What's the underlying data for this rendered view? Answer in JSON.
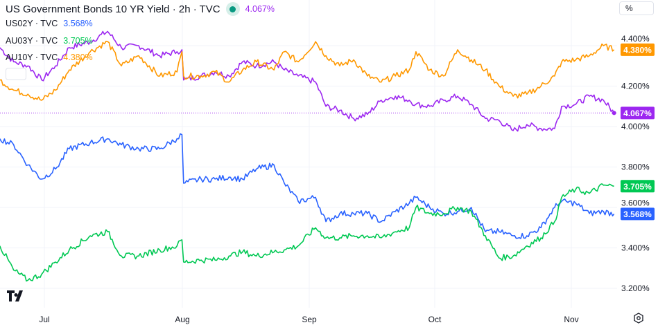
{
  "header": {
    "title": "US Government Bonds 10 YR Yield · 2h · TVC",
    "value": "4.067%"
  },
  "legend": [
    {
      "label": "US02Y · TVC",
      "value": "3.568%",
      "color": "#2962ff"
    },
    {
      "label": "AU03Y · TVC",
      "value": "3.705%",
      "color": "#00c853"
    },
    {
      "label": "AU10Y · TVC",
      "value": "4.380%",
      "color": "#ff9800"
    }
  ],
  "scale_button": "%",
  "chart_data": {
    "type": "line",
    "title": "US Government Bonds 10 YR Yield · 2h · TVC",
    "x_unit": "days since Jul 1",
    "x_ticks": [
      {
        "label": "Jul",
        "day": 0
      },
      {
        "label": "Aug",
        "day": 31
      },
      {
        "label": "Sep",
        "day": 62
      },
      {
        "label": "Oct",
        "day": 92
      },
      {
        "label": "Nov",
        "day": 123
      }
    ],
    "y_ticks": [
      "4.400%",
      "4.200%",
      "4.000%",
      "3.800%",
      "3.600%",
      "3.400%",
      "3.200%"
    ],
    "y_tick_values": [
      4.4,
      4.2,
      4.0,
      3.8,
      3.6,
      3.4,
      3.2
    ],
    "ylim": [
      3.13,
      4.62
    ],
    "x": [
      -10,
      -6.9,
      -3.7,
      -0.6,
      2.5,
      5.6,
      10.3,
      14.2,
      17.3,
      21.2,
      25.9,
      29.8,
      30.9,
      31.3,
      35.6,
      39,
      42.4,
      45.7,
      49.1,
      53.4,
      55.9,
      59.3,
      63.5,
      66,
      69.3,
      72.6,
      75.9,
      79.2,
      82.6,
      85.9,
      87.5,
      90.8,
      94,
      97.2,
      100.3,
      103.5,
      106.6,
      109.8,
      112.9,
      116.1,
      119.2,
      120.8,
      124,
      127.1,
      130.3,
      132.7
    ],
    "series": [
      {
        "name": "US10Y",
        "color": "#9c27f0",
        "last": "4.067%",
        "values": [
          4.39,
          4.32,
          4.3,
          4.23,
          4.3,
          4.39,
          4.42,
          4.47,
          4.39,
          4.4,
          4.35,
          4.37,
          4.38,
          4.23,
          4.25,
          4.27,
          4.25,
          4.32,
          4.3,
          4.32,
          4.28,
          4.25,
          4.22,
          4.1,
          4.08,
          4.04,
          4.06,
          4.13,
          4.15,
          4.13,
          4.11,
          4.1,
          4.13,
          4.15,
          4.11,
          4.04,
          4.03,
          3.98,
          4.01,
          3.99,
          3.99,
          4.1,
          4.11,
          4.15,
          4.13,
          4.067
        ]
      },
      {
        "name": "AU10Y",
        "color": "#ff9800",
        "last": "4.380%",
        "values": [
          4.23,
          4.18,
          4.16,
          4.13,
          4.18,
          4.28,
          4.37,
          4.42,
          4.3,
          4.35,
          4.25,
          4.27,
          4.37,
          4.25,
          4.25,
          4.27,
          4.22,
          4.28,
          4.32,
          4.28,
          4.37,
          4.32,
          4.42,
          4.35,
          4.3,
          4.33,
          4.25,
          4.22,
          4.25,
          4.28,
          4.37,
          4.28,
          4.25,
          4.38,
          4.33,
          4.28,
          4.2,
          4.15,
          4.16,
          4.2,
          4.25,
          4.32,
          4.33,
          4.35,
          4.4,
          4.38
        ]
      },
      {
        "name": "US02Y",
        "color": "#2962ff",
        "last": "3.568%",
        "values": [
          3.94,
          3.91,
          3.81,
          3.74,
          3.79,
          3.89,
          3.92,
          3.94,
          3.91,
          3.89,
          3.89,
          3.94,
          3.96,
          3.72,
          3.74,
          3.74,
          3.75,
          3.74,
          3.79,
          3.81,
          3.72,
          3.63,
          3.65,
          3.53,
          3.57,
          3.57,
          3.57,
          3.53,
          3.58,
          3.62,
          3.65,
          3.6,
          3.57,
          3.58,
          3.6,
          3.48,
          3.48,
          3.46,
          3.46,
          3.5,
          3.6,
          3.63,
          3.62,
          3.57,
          3.58,
          3.568
        ]
      },
      {
        "name": "AU03Y",
        "color": "#00c853",
        "last": "3.705%",
        "values": [
          3.41,
          3.29,
          3.24,
          3.27,
          3.33,
          3.39,
          3.46,
          3.48,
          3.36,
          3.36,
          3.39,
          3.41,
          3.44,
          3.33,
          3.34,
          3.34,
          3.36,
          3.38,
          3.36,
          3.38,
          3.39,
          3.41,
          3.5,
          3.45,
          3.45,
          3.46,
          3.46,
          3.45,
          3.48,
          3.5,
          3.6,
          3.57,
          3.57,
          3.6,
          3.58,
          3.46,
          3.35,
          3.36,
          3.41,
          3.45,
          3.53,
          3.65,
          3.69,
          3.67,
          3.71,
          3.705
        ]
      }
    ]
  }
}
